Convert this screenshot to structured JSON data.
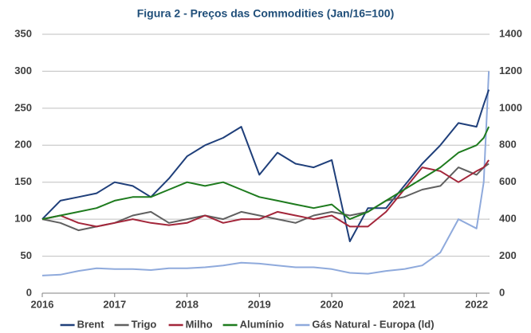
{
  "chart_data": {
    "type": "line",
    "title": "Figura 2 - Preços das Commodities (Jan/16=100)",
    "x": [
      2016,
      2016.25,
      2016.5,
      2016.75,
      2017,
      2017.25,
      2017.5,
      2017.75,
      2018,
      2018.25,
      2018.5,
      2018.75,
      2019,
      2019.25,
      2019.5,
      2019.75,
      2020,
      2020.25,
      2020.5,
      2020.75,
      2021,
      2021.25,
      2021.5,
      2021.75,
      2022,
      2022.1,
      2022.17
    ],
    "xlim": [
      2016,
      2022.18
    ],
    "xticks": [
      2016,
      2017,
      2018,
      2019,
      2020,
      2021,
      2022
    ],
    "ylim": [
      0,
      350
    ],
    "yticks": [
      0,
      50,
      100,
      150,
      200,
      250,
      300,
      350
    ],
    "y2lim": [
      0,
      1400
    ],
    "y2ticks": [
      0,
      200,
      400,
      600,
      800,
      1000,
      1200,
      1400
    ],
    "grid": true,
    "legend": "bottom",
    "series": [
      {
        "name": "Brent",
        "color": "#1f3f7a",
        "values": [
          100,
          125,
          130,
          135,
          150,
          145,
          130,
          155,
          185,
          200,
          210,
          225,
          160,
          190,
          175,
          170,
          180,
          70,
          115,
          115,
          145,
          175,
          200,
          230,
          225,
          255,
          275
        ]
      },
      {
        "name": "Trigo",
        "color": "#606060",
        "values": [
          100,
          95,
          85,
          90,
          95,
          105,
          110,
          95,
          100,
          105,
          100,
          110,
          105,
          100,
          95,
          105,
          110,
          105,
          110,
          125,
          130,
          140,
          145,
          170,
          160,
          170,
          175
        ]
      },
      {
        "name": "Milho",
        "color": "#a3263a",
        "values": [
          100,
          105,
          95,
          90,
          95,
          100,
          95,
          92,
          95,
          105,
          95,
          100,
          100,
          110,
          105,
          100,
          105,
          90,
          90,
          110,
          140,
          170,
          165,
          150,
          165,
          170,
          180
        ]
      },
      {
        "name": "Alumínio",
        "color": "#1e7b1e",
        "values": [
          100,
          105,
          110,
          115,
          125,
          130,
          130,
          140,
          150,
          145,
          150,
          140,
          130,
          125,
          120,
          115,
          120,
          100,
          110,
          125,
          140,
          155,
          170,
          190,
          200,
          210,
          225
        ]
      },
      {
        "name": "Gás Natural - Europa (ld)",
        "color": "#8faadc",
        "axis": "y2",
        "values": [
          95,
          100,
          120,
          135,
          130,
          130,
          125,
          135,
          135,
          140,
          150,
          165,
          160,
          150,
          140,
          140,
          130,
          110,
          105,
          120,
          130,
          150,
          220,
          400,
          350,
          600,
          1200
        ]
      }
    ]
  }
}
